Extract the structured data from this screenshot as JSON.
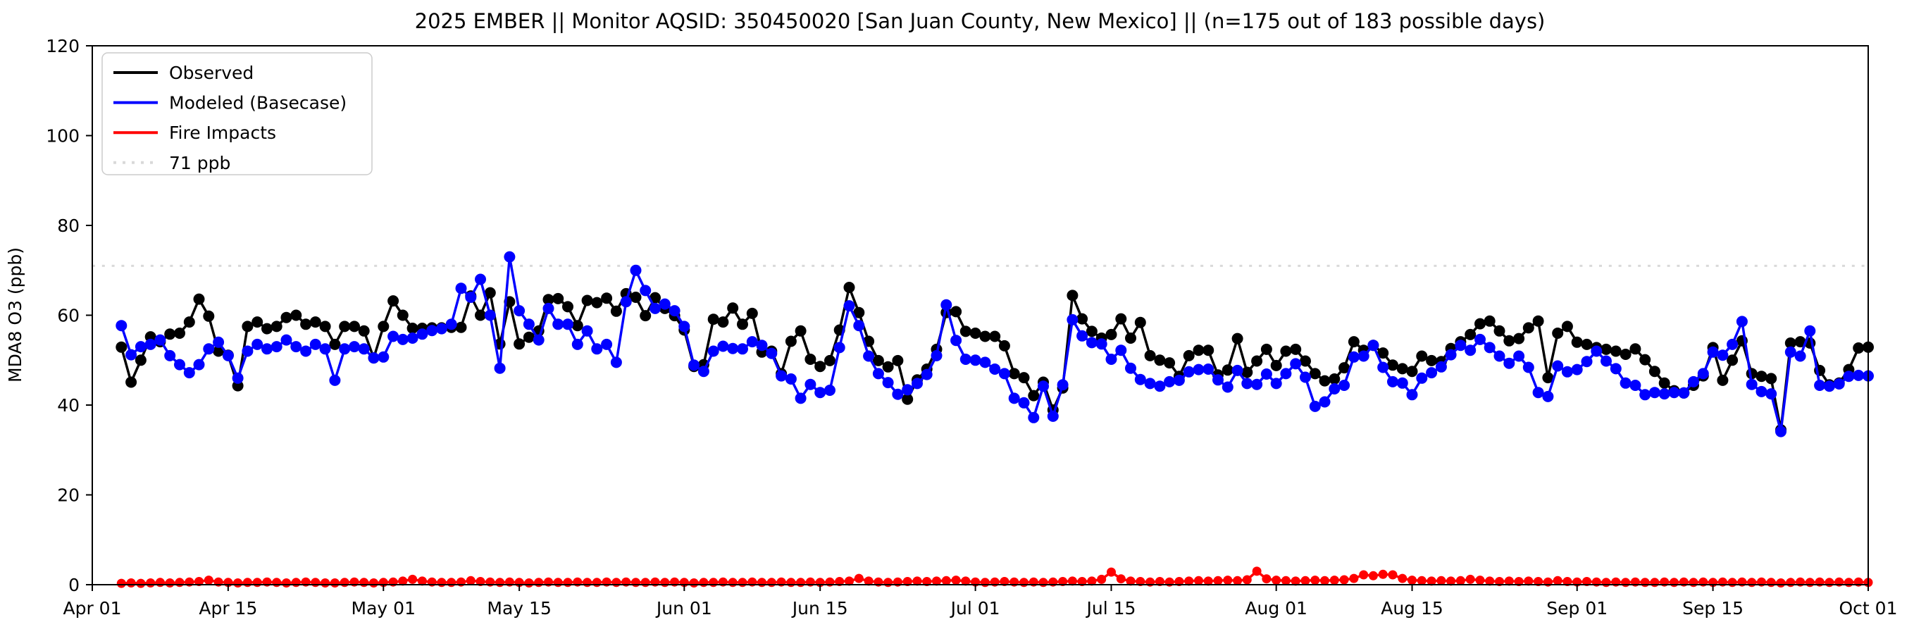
{
  "title": "2025 EMBER || Monitor AQSID: 350450020 [San Juan County, New Mexico] || (n=175 out of 183 possible days)",
  "axes": {
    "ylabel": "MDA8 O3 (ppb)",
    "ylim": [
      0,
      120
    ],
    "yticks": [
      0,
      20,
      40,
      60,
      80,
      100,
      120
    ],
    "xtick_labels": [
      "Apr 01",
      "Apr 15",
      "May 01",
      "May 15",
      "Jun 01",
      "Jun 15",
      "Jul 01",
      "Jul 15",
      "Aug 01",
      "Aug 15",
      "Sep 01",
      "Sep 15",
      "Oct 01"
    ],
    "xtick_days": [
      0,
      14,
      30,
      44,
      61,
      75,
      91,
      105,
      122,
      136,
      153,
      167,
      183
    ]
  },
  "legend": {
    "items": [
      {
        "label": "Observed",
        "color": "#000000",
        "dash": ""
      },
      {
        "label": "Modeled (Basecase)",
        "color": "#0000ff",
        "dash": ""
      },
      {
        "label": "Fire Impacts",
        "color": "#ff0000",
        "dash": ""
      },
      {
        "label": "71 ppb",
        "color": "#d9d9d9",
        "dash": "4 9"
      }
    ]
  },
  "reference_line": {
    "value": 71,
    "label": "71 ppb",
    "color": "#d9d9d9"
  },
  "chart_data": {
    "type": "line",
    "title": "2025 EMBER || Monitor AQSID: 350450020 [San Juan County, New Mexico] || (n=175 out of 183 possible days)",
    "xlabel": "",
    "ylabel": "MDA8 O3 (ppb)",
    "ylim": [
      0,
      120
    ],
    "x_unit": "day index from Apr 01 (0 = Apr 01, 183 = Oct 01)",
    "start_day": 3,
    "end_day": 183,
    "grid": false,
    "legend_position": "upper left",
    "series": [
      {
        "name": "Observed",
        "color": "#000000",
        "marker": "circle",
        "values": [
          52.9,
          45.1,
          50,
          55.2,
          54.1,
          55.8,
          56,
          58.5,
          63.6,
          59.8,
          52,
          51.1,
          44.3,
          57.5,
          58.5,
          57,
          57.5,
          59.5,
          60,
          58,
          58.5,
          57.5,
          53.5,
          57.5,
          57.5,
          56.5,
          50.5,
          57.5,
          63.2,
          60,
          57.1,
          57.1,
          57.2,
          57.2,
          57.3,
          57.3,
          64.3,
          60,
          65,
          53.6,
          63,
          53.6,
          55.1,
          56.5,
          63.5,
          63.7,
          61.9,
          57.7,
          63.3,
          62.8,
          63.8,
          60.9,
          64.8,
          64,
          59.9,
          63.9,
          61.5,
          59.9,
          56.7,
          48.6,
          49,
          59.1,
          58.5,
          61.6,
          58,
          60.4,
          51.8,
          52,
          47,
          54.2,
          56.5,
          50.2,
          48.6,
          49.9,
          56.7,
          66.2,
          60.6,
          54.2,
          49.9,
          48.5,
          49.9,
          41.3,
          45.6,
          48,
          52.4,
          60.6,
          60.8,
          56.4,
          56,
          55.3,
          55.3,
          53.2,
          47,
          46.1,
          42.1,
          45.1,
          38.9,
          43.8,
          64.4,
          59.2,
          56.4,
          54.9,
          55.7,
          59.2,
          54.9,
          58.4,
          51,
          50,
          49.4,
          46.4,
          51,
          52.2,
          52.2,
          46.7,
          47.8,
          54.8,
          47.3,
          49.8,
          52.4,
          48.8,
          52,
          52.4,
          49.8,
          47,
          45.4,
          45.8,
          48.3,
          54.1,
          52.2,
          53.3,
          51.6,
          48.9,
          48.1,
          47.5,
          50.9,
          49.9,
          49.7,
          52.6,
          54.1,
          55.7,
          58.1,
          58.7,
          56.5,
          54.3,
          54.8,
          57.2,
          58.7,
          46.1,
          56,
          57.5,
          54,
          53.5,
          52.8,
          52.4,
          52,
          51.3,
          52.5,
          50.1,
          47.5,
          44.9,
          43.2,
          42.7,
          44.4,
          46.5,
          52.8,
          45.5,
          50,
          54.3,
          47,
          46.4,
          45.9,
          34.5,
          53.8,
          54.1,
          53.8,
          47.7,
          44.5,
          44.9,
          47.9,
          52.7,
          52.9
        ]
      },
      {
        "name": "Modeled (Basecase)",
        "color": "#0000ff",
        "marker": "circle",
        "values": [
          57.7,
          51.2,
          53,
          53.5,
          54.5,
          51,
          49,
          47.2,
          49,
          52.5,
          54,
          51,
          46,
          52,
          53.5,
          52.5,
          53,
          54.5,
          53,
          52,
          53.5,
          52.5,
          45.5,
          52.5,
          53,
          52.5,
          50.5,
          50.7,
          55.3,
          54.6,
          54.9,
          55.8,
          56.6,
          57,
          58,
          66,
          64,
          68,
          60,
          48.2,
          73,
          61,
          58,
          54.5,
          61.5,
          58,
          58,
          53.5,
          56.5,
          52.5,
          53.5,
          49.5,
          63,
          70,
          65.5,
          61.5,
          62.5,
          61,
          57.5,
          48.9,
          47.5,
          52,
          53.1,
          52.6,
          52.5,
          54.1,
          53.3,
          51.5,
          46.5,
          45.8,
          41.5,
          44.6,
          42.8,
          43.3,
          52.8,
          62.1,
          57.7,
          50.9,
          47,
          45,
          42.4,
          43.4,
          44.8,
          46.8,
          51,
          62.3,
          54.4,
          50.2,
          50,
          49.5,
          48,
          47,
          41.5,
          40.5,
          37.2,
          44.2,
          37.5,
          44.5,
          59,
          55.4,
          53.9,
          53.6,
          50.2,
          52.2,
          48.2,
          45.7,
          44.8,
          44.2,
          45.2,
          45.5,
          47.4,
          47.9,
          48,
          45.6,
          44,
          47.7,
          44.8,
          44.6,
          46.9,
          44.8,
          47,
          49.2,
          46.2,
          39.7,
          40.7,
          43.6,
          44.4,
          50.7,
          50.9,
          53.3,
          48.4,
          45.2,
          44.9,
          42.3,
          46,
          47.2,
          48.5,
          51.2,
          53.3,
          52.2,
          54.6,
          52.8,
          50.9,
          49.3,
          50.9,
          48.4,
          42.8,
          41.9,
          48.7,
          47.4,
          47.9,
          49.7,
          52,
          49.8,
          48.1,
          44.9,
          44.4,
          42.3,
          42.8,
          42.5,
          42.8,
          42.7,
          45.2,
          47,
          51.8,
          51.1,
          53.5,
          58.6,
          44.6,
          43,
          42.5,
          34.1,
          51.8,
          50.9,
          56.5,
          44.4,
          44.2,
          44.7,
          46.4,
          46.6,
          46.5
        ]
      },
      {
        "name": "Fire Impacts",
        "color": "#ff0000",
        "marker": "circle",
        "values": [
          0.3,
          0.4,
          0.3,
          0.4,
          0.5,
          0.4,
          0.5,
          0.6,
          0.7,
          1.0,
          0.6,
          0.5,
          0.4,
          0.5,
          0.5,
          0.6,
          0.5,
          0.4,
          0.5,
          0.6,
          0.5,
          0.4,
          0.4,
          0.5,
          0.6,
          0.5,
          0.4,
          0.5,
          0.6,
          0.8,
          1.2,
          0.8,
          0.6,
          0.5,
          0.5,
          0.6,
          0.9,
          0.7,
          0.6,
          0.5,
          0.6,
          0.5,
          0.4,
          0.5,
          0.6,
          0.5,
          0.5,
          0.6,
          0.5,
          0.5,
          0.6,
          0.5,
          0.6,
          0.5,
          0.5,
          0.6,
          0.5,
          0.6,
          0.5,
          0.4,
          0.5,
          0.5,
          0.6,
          0.5,
          0.5,
          0.6,
          0.5,
          0.5,
          0.6,
          0.5,
          0.5,
          0.6,
          0.5,
          0.6,
          0.7,
          0.8,
          1.4,
          0.8,
          0.6,
          0.5,
          0.6,
          0.7,
          0.8,
          0.7,
          0.8,
          0.9,
          1.0,
          0.8,
          0.6,
          0.5,
          0.6,
          0.7,
          0.6,
          0.5,
          0.6,
          0.5,
          0.6,
          0.7,
          0.8,
          0.7,
          0.8,
          1.2,
          2.8,
          1.3,
          0.8,
          0.7,
          0.6,
          0.7,
          0.6,
          0.7,
          0.8,
          0.9,
          0.8,
          0.9,
          1.0,
          0.9,
          1.1,
          3.0,
          1.3,
          1.0,
          0.9,
          0.8,
          0.9,
          1.0,
          0.9,
          1.0,
          1.1,
          1.4,
          2.2,
          2.0,
          2.3,
          2.2,
          1.4,
          1.0,
          0.9,
          0.8,
          0.9,
          0.8,
          0.9,
          1.2,
          1.0,
          0.8,
          0.7,
          0.8,
          0.7,
          0.8,
          0.7,
          0.6,
          0.9,
          0.7,
          0.6,
          0.7,
          0.6,
          0.5,
          0.6,
          0.5,
          0.6,
          0.5,
          0.5,
          0.6,
          0.5,
          0.6,
          0.5,
          0.6,
          0.5,
          0.6,
          0.5,
          0.6,
          0.5,
          0.6,
          0.5,
          0.4,
          0.5,
          0.6,
          0.5,
          0.6,
          0.5,
          0.6,
          0.5,
          0.6,
          0.5
        ]
      }
    ],
    "reference_line": {
      "value": 71,
      "label": "71 ppb",
      "color": "#d9d9d9",
      "style": "dotted"
    }
  }
}
